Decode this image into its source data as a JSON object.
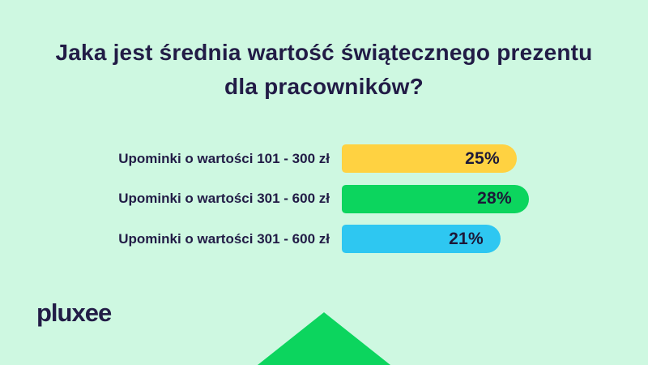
{
  "page": {
    "background_color": "#CEF8E1",
    "text_color": "#221C46"
  },
  "title": "Jaka jest średnia wartość świątecznego prezentu dla pracowników?",
  "logo": {
    "brand": "pluxee"
  },
  "decor": {
    "arrow_up_color": "#0CD55E"
  },
  "chart_data": {
    "type": "bar",
    "orientation": "horizontal",
    "title": "Jaka jest średnia wartość świątecznego prezentu dla pracowników?",
    "categories": [
      "Upominki o wartości 101 - 300 zł",
      "Upominki o wartości 301 - 600 zł",
      "Upominki o wartości 301 - 600 zł"
    ],
    "values": [
      25,
      28,
      21
    ],
    "value_labels": [
      "25%",
      "28%",
      "21%"
    ],
    "unit": "%",
    "bar_colors": [
      "#FFD241",
      "#0CD55E",
      "#2EC7F1"
    ],
    "legend": "none",
    "grid": false,
    "value_label_position": "inside-right"
  }
}
